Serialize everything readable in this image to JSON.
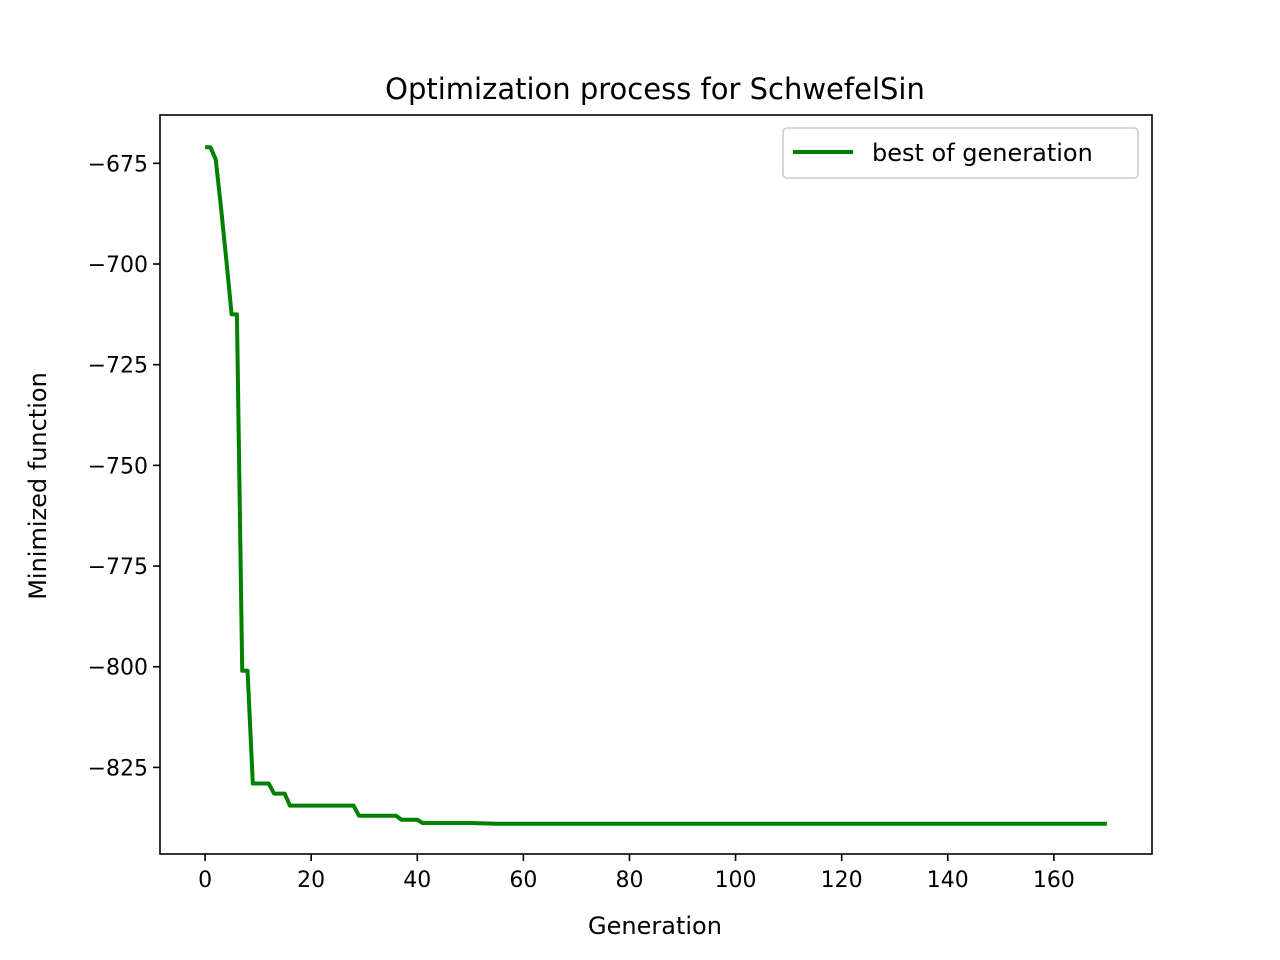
{
  "chart_data": {
    "type": "line",
    "title": "Optimization process for SchwefelSin",
    "xlabel": "Generation",
    "ylabel": "Minimized function",
    "xlim": [
      -8.5,
      178.5
    ],
    "ylim": [
      -846.5,
      -663
    ],
    "xticks": [
      0,
      20,
      40,
      60,
      80,
      100,
      120,
      140,
      160
    ],
    "yticks": [
      -675,
      -700,
      -725,
      -750,
      -775,
      -800,
      -825
    ],
    "ytick_labels": [
      "−675",
      "−700",
      "−725",
      "−750",
      "−775",
      "−800",
      "−825"
    ],
    "legend_position": "top-right",
    "grid": false,
    "series": [
      {
        "name": "best of generation",
        "color": "#008000",
        "x": [
          0,
          1,
          2,
          3,
          4,
          5,
          6,
          7,
          8,
          9,
          10,
          11,
          12,
          13,
          14,
          15,
          16,
          17,
          18,
          20,
          25,
          28,
          29,
          30,
          35,
          36,
          37,
          40,
          41,
          45,
          50,
          55,
          60,
          80,
          100,
          120,
          140,
          160,
          170
        ],
        "y": [
          -671,
          -671,
          -674,
          -686,
          -699,
          -712.5,
          -712.5,
          -801,
          -801,
          -829,
          -829,
          -829,
          -829,
          -831.5,
          -831.5,
          -831.5,
          -834.5,
          -834.5,
          -834.5,
          -834.5,
          -834.5,
          -834.5,
          -837,
          -837,
          -837,
          -837,
          -838,
          -838,
          -838.8,
          -838.8,
          -838.8,
          -839,
          -839,
          -839,
          -839,
          -839,
          -839,
          -839,
          -839
        ]
      }
    ]
  }
}
